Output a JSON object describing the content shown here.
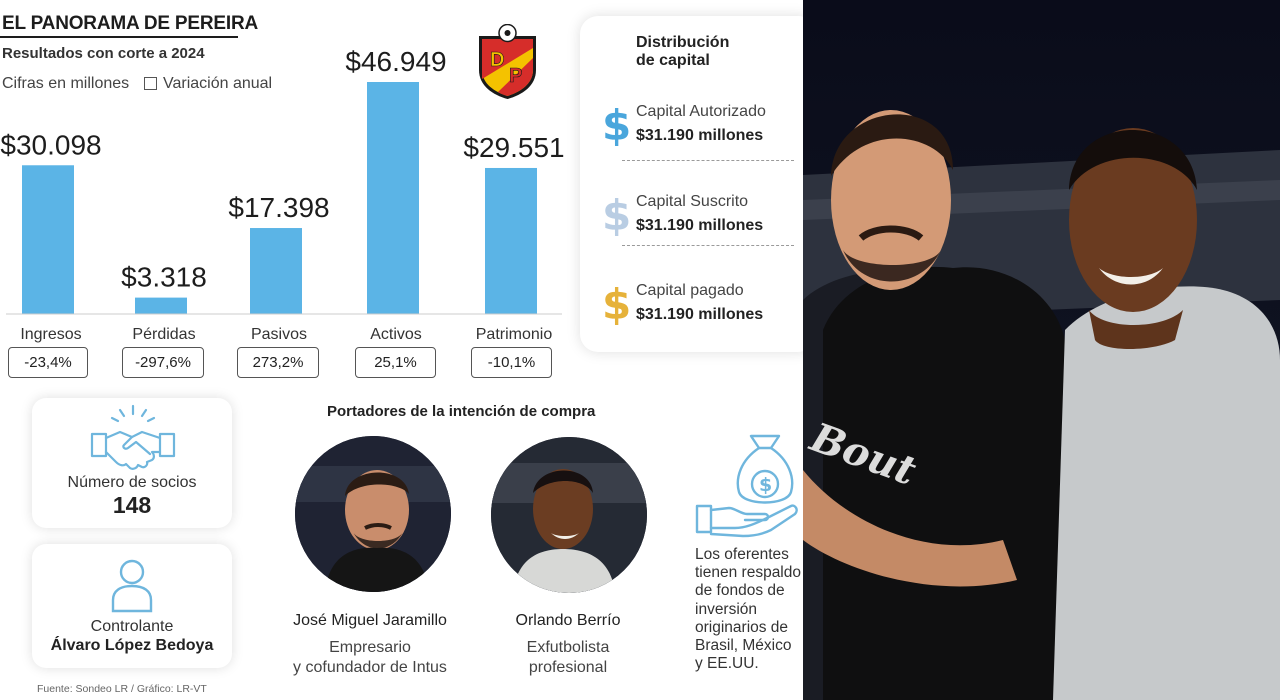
{
  "header": {
    "title": "EL PANORAMA DE PEREIRA",
    "subtitle": "Resultados con corte a 2024",
    "units": "Cifras en millones",
    "legend_label": "Variación anual",
    "logo_letters": "DP"
  },
  "colors": {
    "bar": "#5bb4e6",
    "autorizado": "#4aa6dc",
    "suscrito": "#b9cde3",
    "pagado": "#e6b23a",
    "icon": "#6fb6dd",
    "logo_red": "#d62d2a",
    "logo_yellow": "#f4c200"
  },
  "chart_data": {
    "type": "bar",
    "categories": [
      "Ingresos",
      "Pérdidas",
      "Pasivos",
      "Activos",
      "Patrimonio"
    ],
    "values": [
      30098,
      3318,
      17398,
      46949,
      29551
    ],
    "value_labels": [
      "$30.098",
      "$3.318",
      "$17.398",
      "$46.949",
      "$29.551"
    ],
    "variation_labels": [
      "-23,4%",
      "-297,6%",
      "273,2%",
      "25,1%",
      "-10,1%"
    ],
    "variation": [
      -23.4,
      -297.6,
      273.2,
      25.1,
      -10.1
    ],
    "ylim": [
      0,
      46949
    ]
  },
  "capital": {
    "title_line1": "Distribución",
    "title_line2": "de capital",
    "items": [
      {
        "name": "Capital Autorizado",
        "value": "$31.190 millones"
      },
      {
        "name": "Capital Suscrito",
        "value": "$31.190 millones"
      },
      {
        "name": "Capital pagado",
        "value": "$31.190 millones"
      }
    ]
  },
  "socios": {
    "label": "Número de socios",
    "value": "148"
  },
  "controlante": {
    "label": "Controlante",
    "name": "Álvaro López Bedoya"
  },
  "buyers": {
    "title": "Portadores de la intención de compra",
    "people": [
      {
        "name": "José Miguel Jaramillo",
        "role_line1": "Empresario",
        "role_line2": "y cofundador de Intus"
      },
      {
        "name": "Orlando Berrío",
        "role_line1": "Exfutbolista",
        "role_line2": "profesional"
      }
    ]
  },
  "offer": {
    "lines": [
      "Los oferentes",
      "tienen respaldo",
      "de fondos de",
      "inversión",
      "originarios de",
      "Brasil, México",
      "y EE.UU."
    ]
  },
  "source": "Fuente: Sondeo LR / Gráfico: LR-VT"
}
